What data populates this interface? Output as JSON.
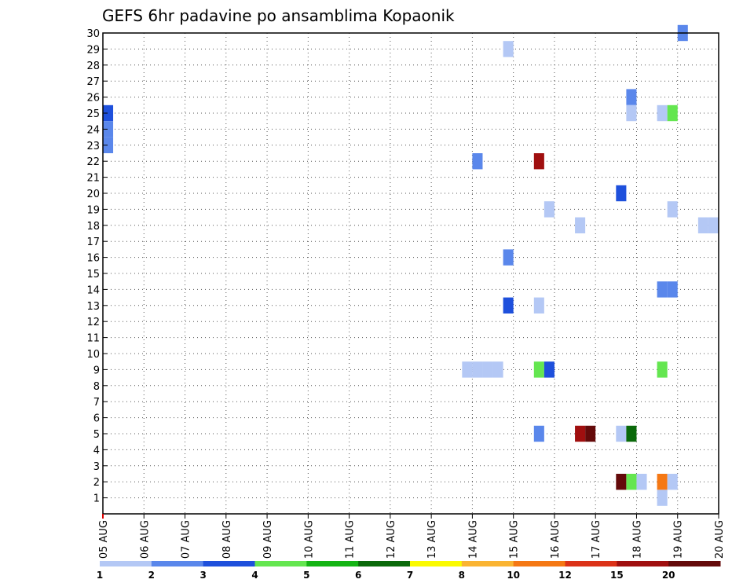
{
  "chart_data": {
    "type": "heatmap",
    "title": "GEFS 6hr padavine po ansamblima Kopaonik",
    "xlabel": "",
    "ylabel": "",
    "x_tick_labels": [
      "05 AUG",
      "06 AUG",
      "07 AUG",
      "08 AUG",
      "09 AUG",
      "10 AUG",
      "11 AUG",
      "12 AUG",
      "13 AUG",
      "14 AUG",
      "15 AUG",
      "16 AUG",
      "17 AUG",
      "18 AUG",
      "19 AUG",
      "20 AUG"
    ],
    "xlim": [
      0,
      15
    ],
    "ylim": [
      0,
      30
    ],
    "y_tick_labels": [
      "1",
      "2",
      "3",
      "4",
      "5",
      "6",
      "7",
      "8",
      "9",
      "10",
      "11",
      "12",
      "13",
      "14",
      "15",
      "16",
      "17",
      "18",
      "19",
      "20",
      "21",
      "22",
      "23",
      "24",
      "25",
      "26",
      "27",
      "28",
      "29",
      "30"
    ],
    "grid": true,
    "colorbar": {
      "labels": [
        "1",
        "2",
        "3",
        "4",
        "5",
        "6",
        "7",
        "8",
        "10",
        "12",
        "15",
        "20"
      ],
      "colors": [
        "#b4c8f5",
        "#5a87eb",
        "#1e50dc",
        "#64e650",
        "#14b414",
        "#0a690a",
        "#fafa00",
        "#fab432",
        "#f57814",
        "#dc3218",
        "#a00f0f",
        "#640a0a"
      ]
    },
    "cells": [
      {
        "x": 0.0,
        "member": 25,
        "value": 3
      },
      {
        "x": 0.0,
        "member": 24,
        "value": 2
      },
      {
        "x": 0.0,
        "member": 23,
        "value": 2
      },
      {
        "x": 8.75,
        "member": 9,
        "value": 1
      },
      {
        "x": 9.0,
        "member": 9,
        "value": 1
      },
      {
        "x": 9.25,
        "member": 9,
        "value": 1
      },
      {
        "x": 9.5,
        "member": 9,
        "value": 1
      },
      {
        "x": 9.0,
        "member": 22,
        "value": 2
      },
      {
        "x": 9.75,
        "member": 29,
        "value": 1
      },
      {
        "x": 9.75,
        "member": 16,
        "value": 2
      },
      {
        "x": 9.75,
        "member": 13,
        "value": 3
      },
      {
        "x": 10.5,
        "member": 22,
        "value": 15
      },
      {
        "x": 10.5,
        "member": 13,
        "value": 1
      },
      {
        "x": 10.5,
        "member": 9,
        "value": 4
      },
      {
        "x": 10.5,
        "member": 5,
        "value": 2
      },
      {
        "x": 10.75,
        "member": 19,
        "value": 1
      },
      {
        "x": 10.75,
        "member": 9,
        "value": 3
      },
      {
        "x": 11.5,
        "member": 18,
        "value": 1
      },
      {
        "x": 11.5,
        "member": 5,
        "value": 15
      },
      {
        "x": 11.75,
        "member": 5,
        "value": 20
      },
      {
        "x": 12.5,
        "member": 20,
        "value": 3
      },
      {
        "x": 12.5,
        "member": 5,
        "value": 1
      },
      {
        "x": 12.5,
        "member": 2,
        "value": 20
      },
      {
        "x": 12.75,
        "member": 26,
        "value": 2
      },
      {
        "x": 12.75,
        "member": 25,
        "value": 1
      },
      {
        "x": 12.75,
        "member": 5,
        "value": 6
      },
      {
        "x": 12.75,
        "member": 2,
        "value": 4
      },
      {
        "x": 13.0,
        "member": 2,
        "value": 1
      },
      {
        "x": 13.5,
        "member": 25,
        "value": 1
      },
      {
        "x": 13.5,
        "member": 14,
        "value": 2
      },
      {
        "x": 13.5,
        "member": 9,
        "value": 4
      },
      {
        "x": 13.5,
        "member": 2,
        "value": 10
      },
      {
        "x": 13.5,
        "member": 1,
        "value": 1
      },
      {
        "x": 13.75,
        "member": 25,
        "value": 4
      },
      {
        "x": 13.75,
        "member": 19,
        "value": 1
      },
      {
        "x": 13.75,
        "member": 14,
        "value": 2
      },
      {
        "x": 13.75,
        "member": 2,
        "value": 1
      },
      {
        "x": 14.0,
        "member": 30,
        "value": 2
      },
      {
        "x": 14.5,
        "member": 18,
        "value": 1
      },
      {
        "x": 14.75,
        "member": 18,
        "value": 1
      }
    ]
  }
}
